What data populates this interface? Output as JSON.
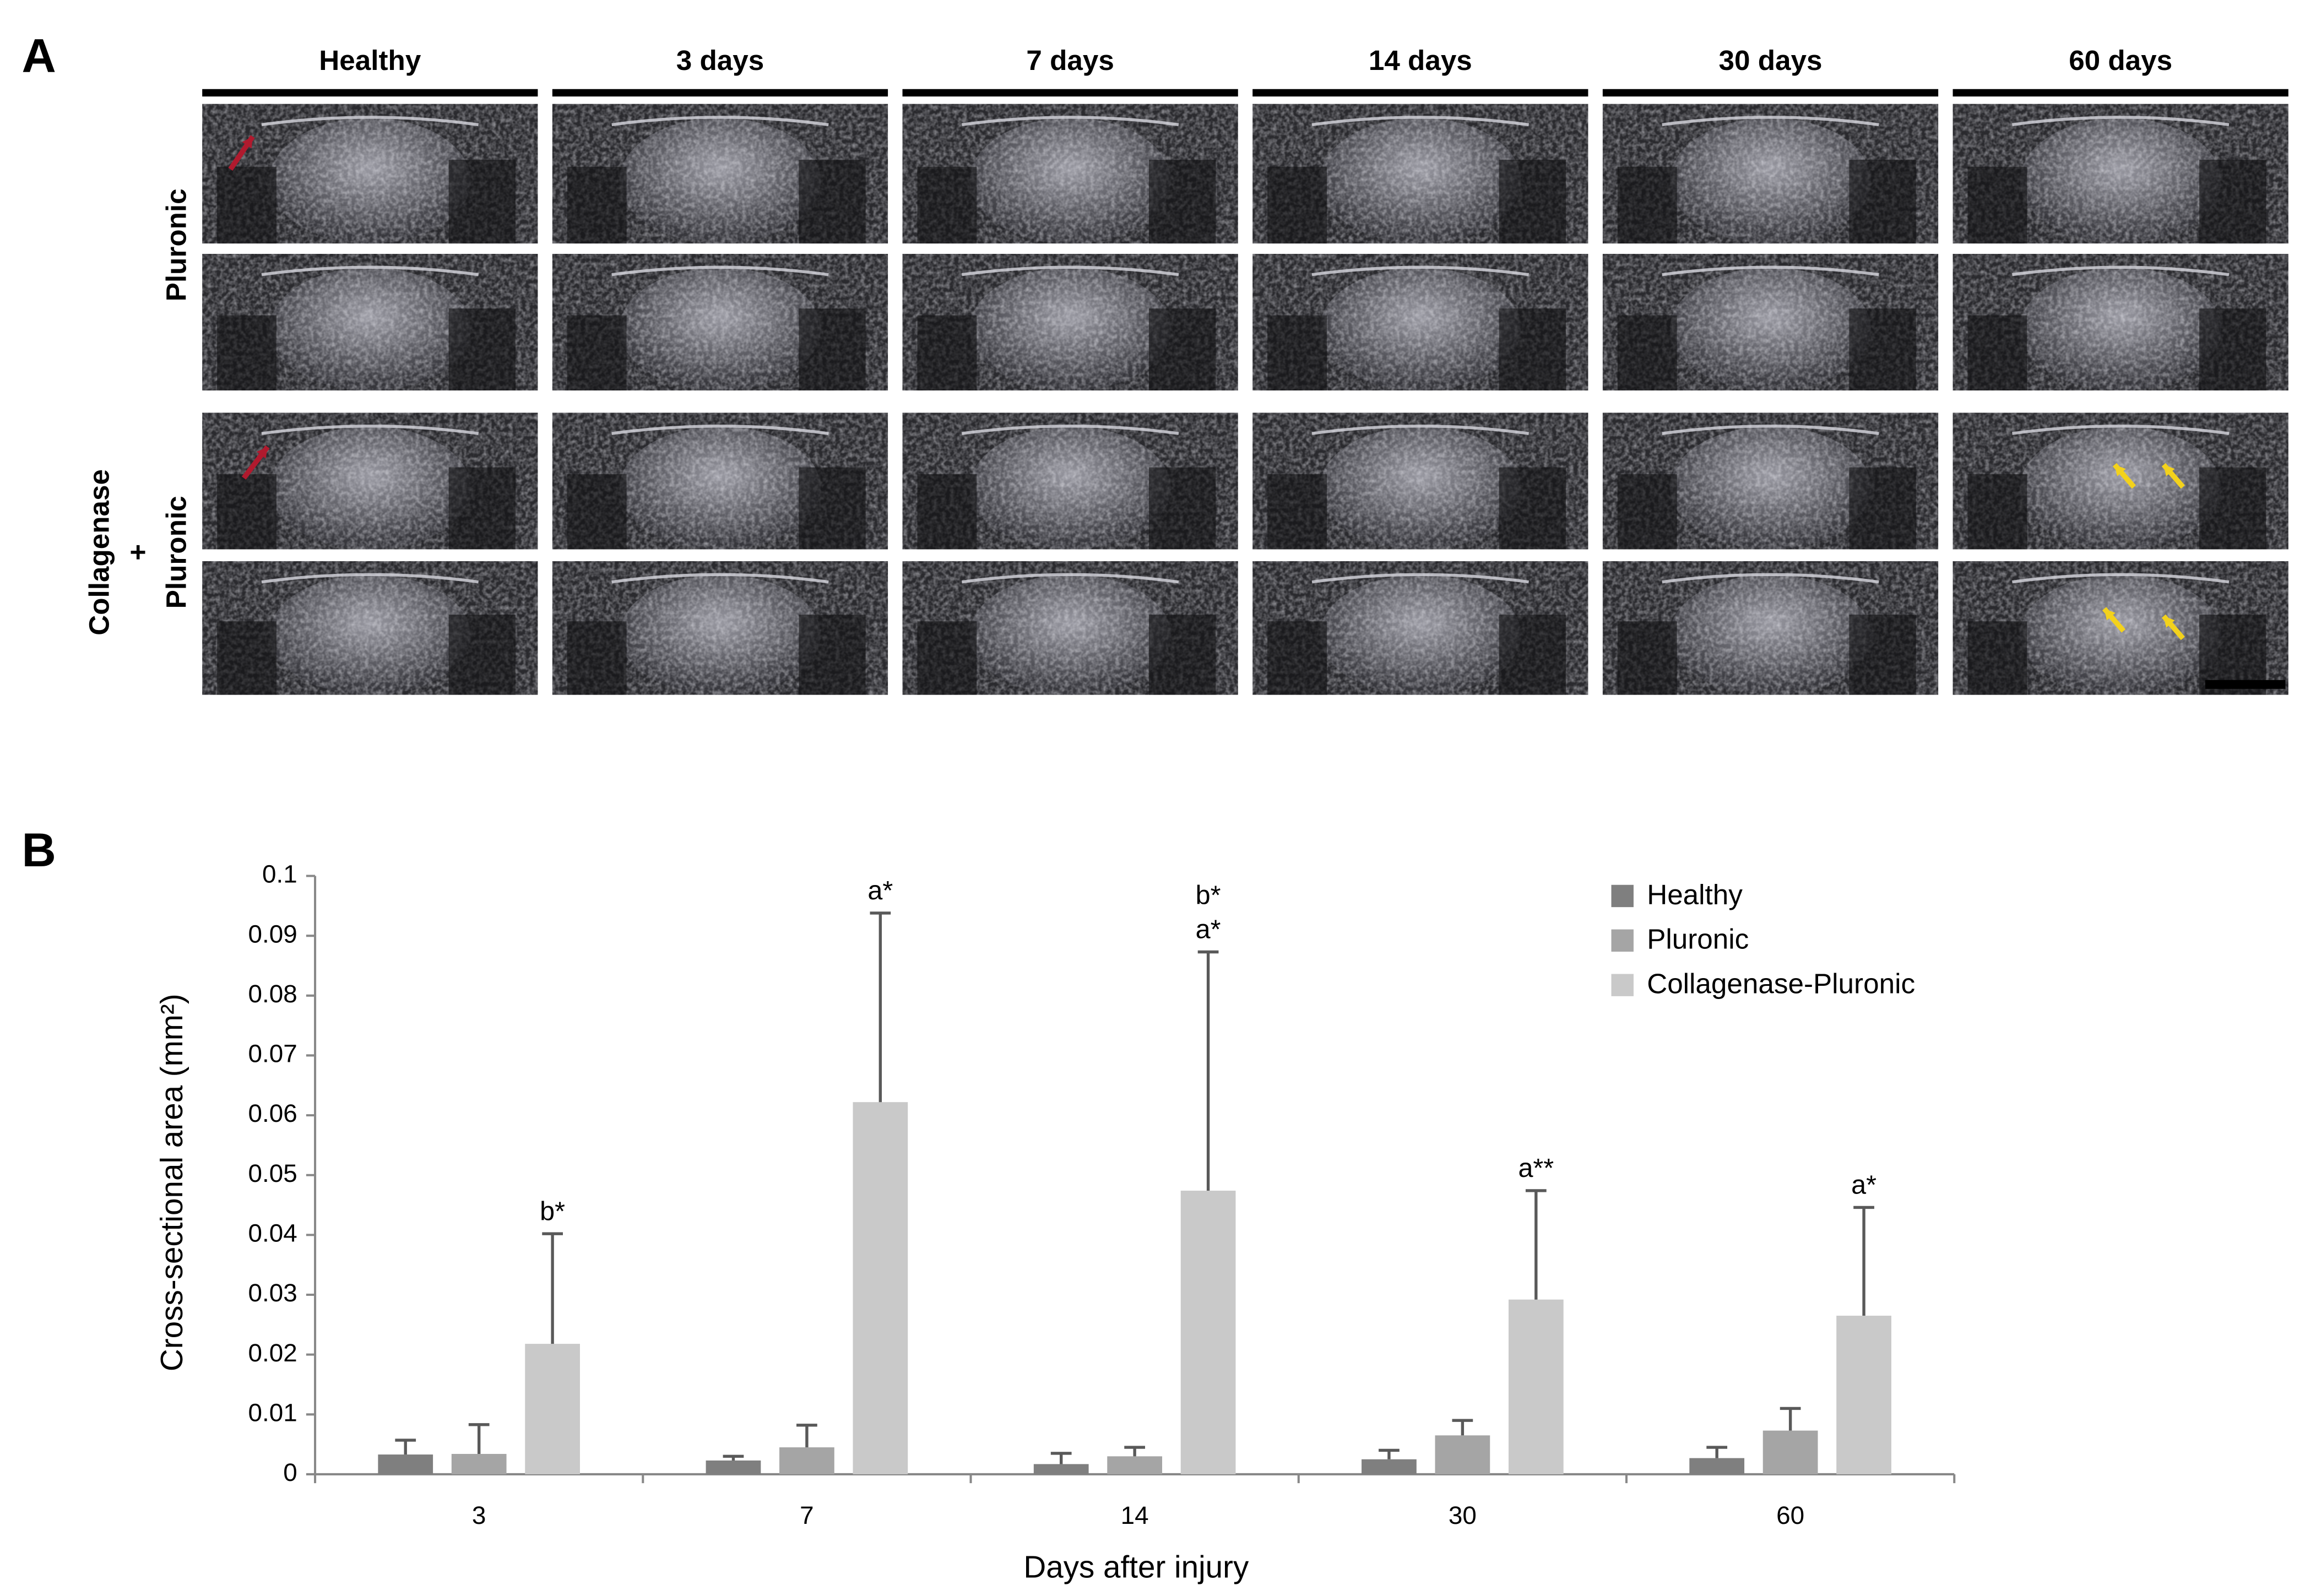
{
  "panel_a": {
    "label": "A",
    "columns": [
      "Healthy",
      "3 days",
      "7 days",
      "14 days",
      "30 days",
      "60 days"
    ],
    "rows": [
      [
        "Pluronic"
      ],
      [
        "Collagenase",
        "+",
        "Pluronic"
      ]
    ]
  },
  "chart_data": {
    "type": "bar",
    "panel_label": "B",
    "ylabel": "Cross-sectional area (mm²)",
    "xlabel": "Days after injury",
    "categories": [
      "3",
      "7",
      "14",
      "30",
      "60"
    ],
    "ylim": [
      0,
      0.1
    ],
    "yticks": [
      0,
      0.01,
      0.02,
      0.03,
      0.04,
      0.05,
      0.06,
      0.07,
      0.08,
      0.09,
      0.1
    ],
    "grid": false,
    "legend": "top-right",
    "series": [
      {
        "name": "Healthy",
        "color": "#7f7f7f",
        "values": [
          0.0033,
          0.0023,
          0.0017,
          0.0025,
          0.0027
        ],
        "errors": [
          0.0024,
          0.0007,
          0.0018,
          0.0015,
          0.0018
        ]
      },
      {
        "name": "Pluronic",
        "color": "#a5a5a5",
        "values": [
          0.0034,
          0.0045,
          0.003,
          0.0065,
          0.0073
        ],
        "errors": [
          0.0049,
          0.0037,
          0.0015,
          0.0025,
          0.0037
        ]
      },
      {
        "name": "Collagenase-Pluronic",
        "color": "#c9c9c9",
        "values": [
          0.0218,
          0.0622,
          0.0474,
          0.0292,
          0.0265
        ],
        "errors": [
          0.0184,
          0.0316,
          0.0399,
          0.0182,
          0.0181
        ]
      }
    ],
    "annotations": [
      [
        "b*"
      ],
      [
        "a*"
      ],
      [
        "b*",
        "a*"
      ],
      [
        "a**"
      ],
      [
        "a*"
      ]
    ]
  }
}
